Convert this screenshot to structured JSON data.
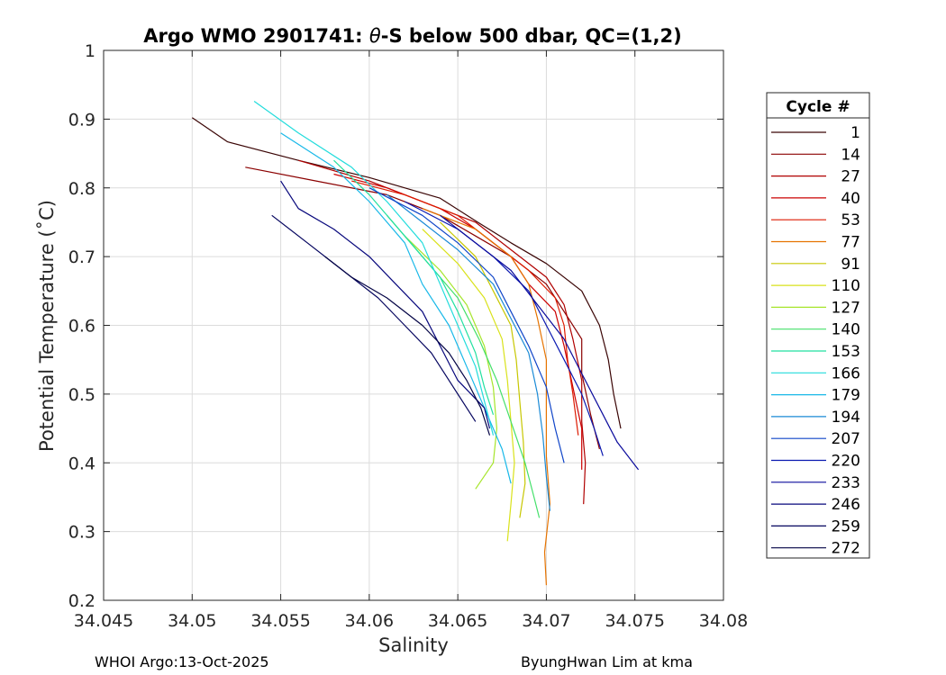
{
  "chart_data": {
    "type": "line",
    "title_prefix": "Argo WMO 2901741: ",
    "title_theta": "θ",
    "title_suffix": "-S below 500 dbar,  QC=(1,2)",
    "xlabel": "Salinity",
    "ylabel": "Potential Temperature (˚C)",
    "xlim": [
      34.045,
      34.08
    ],
    "ylim": [
      0.2,
      1.0
    ],
    "x_ticks": [
      "34.045",
      "34.05",
      "34.055",
      "34.06",
      "34.065",
      "34.07",
      "34.075",
      "34.08"
    ],
    "y_ticks": [
      "0.2",
      "0.3",
      "0.4",
      "0.5",
      "0.6",
      "0.7",
      "0.8",
      "0.9",
      "1"
    ],
    "grid": true,
    "legend_title": "Cycle #",
    "legend_placement": "outside-right",
    "series": [
      {
        "name": "1",
        "color": "#3a0505",
        "points": [
          [
            34.05,
            0.902
          ],
          [
            34.052,
            0.867
          ],
          [
            34.056,
            0.84
          ],
          [
            34.06,
            0.815
          ],
          [
            34.064,
            0.785
          ],
          [
            34.066,
            0.752
          ],
          [
            34.068,
            0.72
          ],
          [
            34.07,
            0.69
          ],
          [
            34.072,
            0.65
          ],
          [
            34.073,
            0.6
          ],
          [
            34.0735,
            0.55
          ],
          [
            34.0738,
            0.5
          ],
          [
            34.0742,
            0.45
          ]
        ]
      },
      {
        "name": "14",
        "color": "#8b0000",
        "points": [
          [
            34.053,
            0.83
          ],
          [
            34.057,
            0.81
          ],
          [
            34.061,
            0.79
          ],
          [
            34.064,
            0.76
          ],
          [
            34.066,
            0.73
          ],
          [
            34.068,
            0.7
          ],
          [
            34.07,
            0.66
          ],
          [
            34.071,
            0.62
          ],
          [
            34.072,
            0.58
          ],
          [
            34.072,
            0.53
          ],
          [
            34.0725,
            0.47
          ],
          [
            34.073,
            0.42
          ]
        ]
      },
      {
        "name": "27",
        "color": "#b00000",
        "points": [
          [
            34.056,
            0.84
          ],
          [
            34.06,
            0.81
          ],
          [
            34.063,
            0.78
          ],
          [
            34.066,
            0.75
          ],
          [
            34.068,
            0.71
          ],
          [
            34.07,
            0.67
          ],
          [
            34.071,
            0.63
          ],
          [
            34.0715,
            0.58
          ],
          [
            34.072,
            0.52
          ],
          [
            34.072,
            0.46
          ],
          [
            34.0722,
            0.4
          ],
          [
            34.0721,
            0.34
          ]
        ]
      },
      {
        "name": "40",
        "color": "#cc0000",
        "points": [
          [
            34.058,
            0.82
          ],
          [
            34.061,
            0.8
          ],
          [
            34.064,
            0.77
          ],
          [
            34.066,
            0.74
          ],
          [
            34.068,
            0.7
          ],
          [
            34.069,
            0.66
          ],
          [
            34.0705,
            0.62
          ],
          [
            34.071,
            0.57
          ],
          [
            34.0715,
            0.51
          ],
          [
            34.072,
            0.45
          ],
          [
            34.072,
            0.39
          ]
        ]
      },
      {
        "name": "53",
        "color": "#dd1a00",
        "points": [
          [
            34.059,
            0.81
          ],
          [
            34.062,
            0.79
          ],
          [
            34.065,
            0.76
          ],
          [
            34.067,
            0.72
          ],
          [
            34.069,
            0.68
          ],
          [
            34.0705,
            0.64
          ],
          [
            34.071,
            0.6
          ],
          [
            34.0712,
            0.55
          ],
          [
            34.0715,
            0.5
          ],
          [
            34.0718,
            0.44
          ]
        ]
      },
      {
        "name": "77",
        "color": "#e67300",
        "points": [
          [
            34.063,
            0.77
          ],
          [
            34.066,
            0.74
          ],
          [
            34.068,
            0.7
          ],
          [
            34.069,
            0.66
          ],
          [
            34.0695,
            0.61
          ],
          [
            34.07,
            0.55
          ],
          [
            34.07,
            0.48
          ],
          [
            34.07,
            0.41
          ],
          [
            34.0702,
            0.34
          ],
          [
            34.0699,
            0.27
          ],
          [
            34.07,
            0.222
          ]
        ]
      },
      {
        "name": "91",
        "color": "#c7c700",
        "points": [
          [
            34.064,
            0.75
          ],
          [
            34.066,
            0.7
          ],
          [
            34.067,
            0.65
          ],
          [
            34.068,
            0.6
          ],
          [
            34.0683,
            0.55
          ],
          [
            34.0685,
            0.49
          ],
          [
            34.0687,
            0.43
          ],
          [
            34.0688,
            0.37
          ],
          [
            34.0685,
            0.32
          ]
        ]
      },
      {
        "name": "110",
        "color": "#d9e21a",
        "points": [
          [
            34.063,
            0.74
          ],
          [
            34.065,
            0.69
          ],
          [
            34.0665,
            0.64
          ],
          [
            34.0675,
            0.58
          ],
          [
            34.0678,
            0.52
          ],
          [
            34.068,
            0.46
          ],
          [
            34.0682,
            0.4
          ],
          [
            34.068,
            0.34
          ],
          [
            34.0678,
            0.286
          ]
        ]
      },
      {
        "name": "127",
        "color": "#a6e52b",
        "points": [
          [
            34.062,
            0.73
          ],
          [
            34.064,
            0.68
          ],
          [
            34.0655,
            0.63
          ],
          [
            34.0665,
            0.57
          ],
          [
            34.067,
            0.51
          ],
          [
            34.0672,
            0.45
          ],
          [
            34.067,
            0.4
          ],
          [
            34.066,
            0.362
          ]
        ]
      },
      {
        "name": "140",
        "color": "#44e06a",
        "points": [
          [
            34.061,
            0.76
          ],
          [
            34.063,
            0.7
          ],
          [
            34.065,
            0.64
          ],
          [
            34.0662,
            0.58
          ],
          [
            34.0672,
            0.52
          ],
          [
            34.068,
            0.46
          ],
          [
            34.0688,
            0.4
          ],
          [
            34.0693,
            0.35
          ],
          [
            34.0696,
            0.32
          ]
        ]
      },
      {
        "name": "153",
        "color": "#22e0a0",
        "points": [
          [
            34.058,
            0.84
          ],
          [
            34.06,
            0.79
          ],
          [
            34.062,
            0.73
          ],
          [
            34.064,
            0.67
          ],
          [
            34.065,
            0.62
          ],
          [
            34.066,
            0.56
          ],
          [
            34.0665,
            0.51
          ],
          [
            34.067,
            0.47
          ]
        ]
      },
      {
        "name": "166",
        "color": "#22dcdc",
        "points": [
          [
            34.0535,
            0.926
          ],
          [
            34.056,
            0.88
          ],
          [
            34.059,
            0.83
          ],
          [
            34.061,
            0.78
          ],
          [
            34.063,
            0.72
          ],
          [
            34.064,
            0.66
          ],
          [
            34.065,
            0.6
          ],
          [
            34.066,
            0.54
          ],
          [
            34.0665,
            0.49
          ],
          [
            34.067,
            0.44
          ]
        ]
      },
      {
        "name": "179",
        "color": "#18b8e8",
        "points": [
          [
            34.055,
            0.88
          ],
          [
            34.058,
            0.83
          ],
          [
            34.06,
            0.78
          ],
          [
            34.062,
            0.72
          ],
          [
            34.063,
            0.66
          ],
          [
            34.0645,
            0.6
          ],
          [
            34.0655,
            0.54
          ],
          [
            34.0665,
            0.48
          ],
          [
            34.0675,
            0.42
          ],
          [
            34.068,
            0.37
          ]
        ]
      },
      {
        "name": "194",
        "color": "#1a8ad6",
        "points": [
          [
            34.061,
            0.79
          ],
          [
            34.063,
            0.75
          ],
          [
            34.065,
            0.71
          ],
          [
            34.067,
            0.66
          ],
          [
            34.068,
            0.61
          ],
          [
            34.069,
            0.56
          ],
          [
            34.0695,
            0.5
          ],
          [
            34.0698,
            0.44
          ],
          [
            34.07,
            0.38
          ],
          [
            34.0702,
            0.33
          ]
        ]
      },
      {
        "name": "207",
        "color": "#0f44c8",
        "points": [
          [
            34.06,
            0.8
          ],
          [
            34.063,
            0.76
          ],
          [
            34.065,
            0.72
          ],
          [
            34.067,
            0.67
          ],
          [
            34.068,
            0.62
          ],
          [
            34.069,
            0.57
          ],
          [
            34.07,
            0.51
          ],
          [
            34.0705,
            0.45
          ],
          [
            34.071,
            0.4
          ]
        ]
      },
      {
        "name": "220",
        "color": "#0a18b0",
        "points": [
          [
            34.062,
            0.78
          ],
          [
            34.065,
            0.74
          ],
          [
            34.067,
            0.7
          ],
          [
            34.069,
            0.65
          ],
          [
            34.07,
            0.6
          ],
          [
            34.071,
            0.55
          ],
          [
            34.072,
            0.5
          ],
          [
            34.0727,
            0.45
          ],
          [
            34.0732,
            0.41
          ]
        ]
      },
      {
        "name": "233",
        "color": "#0a0a9c",
        "points": [
          [
            34.064,
            0.76
          ],
          [
            34.066,
            0.72
          ],
          [
            34.068,
            0.68
          ],
          [
            34.0695,
            0.63
          ],
          [
            34.071,
            0.58
          ],
          [
            34.072,
            0.53
          ],
          [
            34.073,
            0.48
          ],
          [
            34.074,
            0.43
          ],
          [
            34.0752,
            0.39
          ]
        ]
      },
      {
        "name": "246",
        "color": "#07077c",
        "points": [
          [
            34.055,
            0.81
          ],
          [
            34.056,
            0.77
          ],
          [
            34.058,
            0.74
          ],
          [
            34.06,
            0.7
          ],
          [
            34.0615,
            0.66
          ],
          [
            34.063,
            0.62
          ],
          [
            34.064,
            0.57
          ],
          [
            34.065,
            0.52
          ],
          [
            34.0665,
            0.48
          ],
          [
            34.0668,
            0.45
          ]
        ]
      },
      {
        "name": "259",
        "color": "#05055f",
        "points": [
          [
            34.0545,
            0.76
          ],
          [
            34.0565,
            0.72
          ],
          [
            34.0585,
            0.68
          ],
          [
            34.0605,
            0.64
          ],
          [
            34.062,
            0.6
          ],
          [
            34.0635,
            0.56
          ],
          [
            34.0645,
            0.52
          ],
          [
            34.0655,
            0.48
          ],
          [
            34.066,
            0.46
          ]
        ]
      },
      {
        "name": "272",
        "color": "#030345",
        "points": [
          [
            34.0575,
            0.7
          ],
          [
            34.059,
            0.67
          ],
          [
            34.061,
            0.64
          ],
          [
            34.063,
            0.6
          ],
          [
            34.0645,
            0.56
          ],
          [
            34.0655,
            0.52
          ],
          [
            34.0663,
            0.48
          ],
          [
            34.0668,
            0.44
          ]
        ]
      }
    ]
  },
  "footer": {
    "left": "WHOI Argo:13-Oct-2025",
    "right": "ByungHwan Lim at kma"
  }
}
